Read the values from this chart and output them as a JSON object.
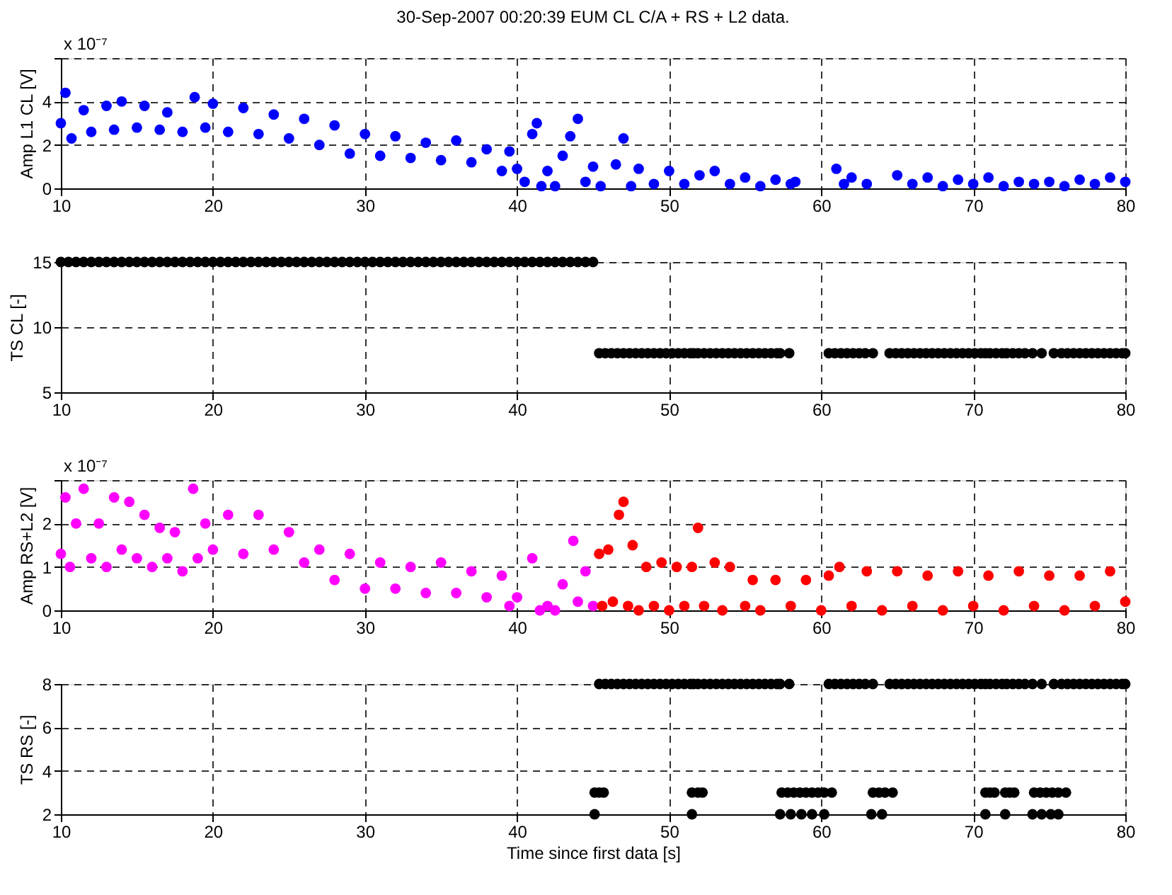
{
  "chart_data": [
    {
      "type": "scatter",
      "title": "30-Sep-2007 00:20:39 EUM CL C/A + RS + L2 data.",
      "ylabel": "Amp L1 CL [V]",
      "annotations": [
        "x 10⁻⁷"
      ],
      "xlim": [
        10,
        80
      ],
      "xticks": [
        10,
        20,
        30,
        40,
        50,
        60,
        70,
        80
      ],
      "ylim": [
        0,
        6
      ],
      "yticks": [
        0,
        2,
        4,
        {
          "value": 6,
          "label": null
        }
      ],
      "grid": true,
      "marker": "circle",
      "series": [
        {
          "color": "#0000ff",
          "x": [
            10,
            10.3,
            10.7,
            11.5,
            12,
            13,
            13.5,
            14,
            15,
            15.5,
            16.5,
            17,
            18,
            18.8,
            19.5,
            20,
            21,
            22,
            23,
            24,
            25,
            26,
            27,
            28,
            29,
            30,
            31,
            32,
            33,
            34,
            35,
            36,
            37,
            38,
            39,
            39.5,
            40,
            40.5,
            41,
            41.3,
            41.6,
            42,
            42.5,
            43,
            43.5,
            44,
            44.5,
            45,
            45.5,
            46.5,
            47,
            47.5,
            48,
            49,
            50,
            51,
            52,
            53,
            54,
            55,
            56,
            57,
            58,
            58.3,
            61,
            61.5,
            62,
            63,
            65,
            66,
            67,
            68,
            69,
            70,
            71,
            72,
            73,
            74,
            75,
            76,
            77,
            78,
            79,
            80
          ],
          "values": [
            3.0,
            4.4,
            2.3,
            3.6,
            2.6,
            3.8,
            2.7,
            4.0,
            2.8,
            3.8,
            2.7,
            3.5,
            2.6,
            4.2,
            2.8,
            3.9,
            2.6,
            3.7,
            2.5,
            3.4,
            2.3,
            3.2,
            2.0,
            2.9,
            1.6,
            2.5,
            1.5,
            2.4,
            1.4,
            2.1,
            1.3,
            2.2,
            1.2,
            1.8,
            0.8,
            1.7,
            0.9,
            0.3,
            2.5,
            3.0,
            0.1,
            0.8,
            0.1,
            1.5,
            2.4,
            3.2,
            0.3,
            1.0,
            0.1,
            1.1,
            2.3,
            0.1,
            0.9,
            0.2,
            0.8,
            0.2,
            0.6,
            0.8,
            0.2,
            0.5,
            0.1,
            0.4,
            0.2,
            0.3,
            0.9,
            0.2,
            0.5,
            0.2,
            0.6,
            0.2,
            0.5,
            0.1,
            0.4,
            0.2,
            0.5,
            0.1,
            0.3,
            0.2,
            0.3,
            0.1,
            0.4,
            0.2,
            0.5,
            0.3
          ]
        }
      ]
    },
    {
      "type": "scatter",
      "ylabel": "TS CL [-]",
      "xlim": [
        10,
        80
      ],
      "xticks": [
        10,
        20,
        30,
        40,
        50,
        60,
        70,
        80
      ],
      "ylim": [
        5,
        15
      ],
      "yticks": [
        5,
        10,
        15
      ],
      "grid": true,
      "marker": "circle",
      "series": [
        {
          "color": "#000000",
          "x": [
            10,
            10.5,
            11,
            11.5,
            12,
            12.5,
            13,
            13.5,
            14,
            14.5,
            15,
            15.5,
            16,
            16.5,
            17,
            17.5,
            18,
            18.5,
            19,
            19.5,
            20,
            20.5,
            21,
            21.5,
            22,
            22.5,
            23,
            23.5,
            24,
            24.5,
            25,
            25.5,
            26,
            26.5,
            27,
            27.5,
            28,
            28.5,
            29,
            29.5,
            30,
            30.5,
            31,
            31.5,
            32,
            32.5,
            33,
            33.5,
            34,
            34.5,
            35,
            35.5,
            36,
            36.5,
            37,
            37.5,
            38,
            38.5,
            39,
            39.5,
            40,
            40.5,
            41,
            41.5,
            42,
            42.5,
            43,
            43.5,
            44,
            44.5,
            45,
            45.4,
            45.8,
            46.2,
            46.6,
            47,
            47.4,
            47.8,
            48.2,
            48.6,
            49,
            49.4,
            49.8,
            50.2,
            50.6,
            51,
            51.4,
            51.6,
            51.9,
            52.3,
            52.7,
            53.1,
            53.5,
            53.9,
            54.3,
            54.7,
            55.1,
            55.5,
            55.9,
            56.3,
            56.7,
            57.1,
            57.3,
            57.9,
            60.5,
            60.9,
            61.3,
            61.7,
            62.1,
            62.5,
            62.9,
            63.4,
            64.5,
            64.9,
            65.3,
            65.7,
            66.1,
            66.5,
            66.9,
            67.3,
            67.7,
            68.1,
            68.5,
            68.9,
            69.3,
            69.7,
            70.1,
            70.5,
            70.8,
            71.1,
            71.5,
            71.9,
            72.2,
            72.6,
            73,
            73.4,
            73.9,
            74.5,
            75.3,
            75.8,
            76.2,
            76.6,
            77,
            77.4,
            77.8,
            78.2,
            78.6,
            79,
            79.4,
            79.8,
            80
          ],
          "values": [
            15,
            15,
            15,
            15,
            15,
            15,
            15,
            15,
            15,
            15,
            15,
            15,
            15,
            15,
            15,
            15,
            15,
            15,
            15,
            15,
            15,
            15,
            15,
            15,
            15,
            15,
            15,
            15,
            15,
            15,
            15,
            15,
            15,
            15,
            15,
            15,
            15,
            15,
            15,
            15,
            15,
            15,
            15,
            15,
            15,
            15,
            15,
            15,
            15,
            15,
            15,
            15,
            15,
            15,
            15,
            15,
            15,
            15,
            15,
            15,
            15,
            15,
            15,
            15,
            15,
            15,
            15,
            15,
            15,
            15,
            15,
            8,
            8,
            8,
            8,
            8,
            8,
            8,
            8,
            8,
            8,
            8,
            8,
            8,
            8,
            8,
            8,
            8,
            8,
            8,
            8,
            8,
            8,
            8,
            8,
            8,
            8,
            8,
            8,
            8,
            8,
            8,
            8,
            8,
            8,
            8,
            8,
            8,
            8,
            8,
            8,
            8,
            8,
            8,
            8,
            8,
            8,
            8,
            8,
            8,
            8,
            8,
            8,
            8,
            8,
            8,
            8,
            8,
            8,
            8,
            8,
            8,
            8,
            8,
            8,
            8,
            8,
            8,
            8,
            8,
            8,
            8,
            8,
            8,
            8,
            8,
            8,
            8,
            8,
            8,
            8
          ]
        }
      ]
    },
    {
      "type": "scatter",
      "ylabel": "Amp RS+L2 [V]",
      "annotations": [
        "x 10⁻⁷"
      ],
      "xlim": [
        10,
        80
      ],
      "xticks": [
        10,
        20,
        30,
        40,
        50,
        60,
        70,
        80
      ],
      "ylim": [
        0,
        3
      ],
      "yticks": [
        0,
        1,
        2,
        {
          "value": 3,
          "label": null
        }
      ],
      "grid": true,
      "marker": "circle",
      "series": [
        {
          "color": "#ff00ff",
          "x": [
            10,
            10.3,
            10.6,
            11,
            11.5,
            12,
            12.5,
            13,
            13.5,
            14,
            14.5,
            15,
            15.5,
            16,
            16.5,
            17,
            17.5,
            18,
            18.7,
            19,
            19.5,
            20,
            21,
            22,
            23,
            24,
            25,
            26,
            27,
            28,
            29,
            30,
            31,
            32,
            33,
            34,
            35,
            36,
            37,
            38,
            39,
            39.5,
            40,
            41,
            41.5,
            42,
            42.5,
            43,
            43.7,
            44,
            44.5,
            45
          ],
          "values": [
            1.3,
            2.6,
            1.0,
            2.0,
            2.8,
            1.2,
            2.0,
            1.0,
            2.6,
            1.4,
            2.5,
            1.2,
            2.2,
            1.0,
            1.9,
            1.2,
            1.8,
            0.9,
            2.8,
            1.2,
            2.0,
            1.4,
            2.2,
            1.3,
            2.2,
            1.4,
            1.8,
            1.1,
            1.4,
            0.7,
            1.3,
            0.5,
            1.1,
            0.5,
            1.0,
            0.4,
            1.1,
            0.4,
            0.9,
            0.3,
            0.8,
            0.1,
            0.3,
            1.2,
            0.0,
            0.1,
            0.0,
            0.6,
            1.6,
            0.2,
            0.9,
            0.1
          ]
        },
        {
          "color": "#ff0000",
          "x": [
            45.4,
            45.6,
            46,
            46.3,
            46.7,
            47,
            47.3,
            47.6,
            48,
            48.5,
            49,
            49.5,
            50,
            50.5,
            51,
            51.5,
            51.9,
            52.3,
            53,
            53.5,
            54,
            55,
            55.5,
            56,
            57,
            58,
            59,
            60,
            60.5,
            61.2,
            62,
            63,
            64,
            65,
            66,
            67,
            68,
            69,
            70,
            71,
            72,
            73,
            74,
            75,
            76,
            77,
            78,
            79,
            80
          ],
          "values": [
            1.3,
            0.1,
            1.4,
            0.2,
            2.2,
            2.5,
            0.1,
            1.5,
            0.0,
            1.0,
            0.1,
            1.1,
            0.0,
            1.0,
            0.1,
            1.0,
            1.9,
            0.1,
            1.1,
            0.0,
            1.0,
            0.1,
            0.7,
            0.0,
            0.7,
            0.1,
            0.7,
            0.0,
            0.8,
            1.0,
            0.1,
            0.9,
            0.0,
            0.9,
            0.1,
            0.8,
            0.0,
            0.9,
            0.1,
            0.8,
            0.0,
            0.9,
            0.1,
            0.8,
            0.0,
            0.8,
            0.1,
            0.9,
            0.2
          ]
        }
      ]
    },
    {
      "type": "scatter",
      "ylabel": "TS RS [-]",
      "xlabel": "Time since first data [s]",
      "xlim": [
        10,
        80
      ],
      "xticks": [
        10,
        20,
        30,
        40,
        50,
        60,
        70,
        80
      ],
      "ylim": [
        2,
        8
      ],
      "yticks": [
        2,
        4,
        6,
        8
      ],
      "grid": true,
      "marker": "circle",
      "series": [
        {
          "color": "#000000",
          "x": [
            45.4,
            45.8,
            46.2,
            46.6,
            47,
            47.4,
            47.8,
            48.2,
            48.6,
            49,
            49.4,
            49.8,
            50.2,
            50.6,
            51,
            51.4,
            51.6,
            51.9,
            52.3,
            52.7,
            53.1,
            53.5,
            53.9,
            54.3,
            54.7,
            55.1,
            55.5,
            55.9,
            56.3,
            56.7,
            57.1,
            57.3,
            57.9,
            60.5,
            60.9,
            61.3,
            61.7,
            62.1,
            62.5,
            62.9,
            63.4,
            64.5,
            64.9,
            65.3,
            65.7,
            66.1,
            66.5,
            66.9,
            67.3,
            67.7,
            68.1,
            68.5,
            68.9,
            69.3,
            69.7,
            70.1,
            70.5,
            70.8,
            71.1,
            71.5,
            71.9,
            72.2,
            72.6,
            73,
            73.4,
            73.9,
            74.5,
            75.3,
            75.8,
            76.2,
            76.6,
            77,
            77.4,
            77.8,
            78.2,
            78.6,
            79,
            79.4,
            79.8,
            80,
            45.1,
            45.4,
            45.7,
            51.5,
            51.9,
            52.2,
            57.4,
            57.8,
            58.2,
            58.6,
            59,
            59.4,
            59.8,
            60.2,
            60.7,
            63.4,
            63.8,
            64.2,
            64.7,
            70.8,
            71.1,
            71.4,
            72.1,
            72.4,
            72.7,
            74,
            74.4,
            74.8,
            75.2,
            75.6,
            76.1,
            45.1,
            51.5,
            57.3,
            58,
            58.7,
            59.4,
            60.2,
            63.3,
            64,
            70.8,
            72.1,
            73.9,
            74.5,
            75.1,
            75.6
          ],
          "values": [
            8,
            8,
            8,
            8,
            8,
            8,
            8,
            8,
            8,
            8,
            8,
            8,
            8,
            8,
            8,
            8,
            8,
            8,
            8,
            8,
            8,
            8,
            8,
            8,
            8,
            8,
            8,
            8,
            8,
            8,
            8,
            8,
            8,
            8,
            8,
            8,
            8,
            8,
            8,
            8,
            8,
            8,
            8,
            8,
            8,
            8,
            8,
            8,
            8,
            8,
            8,
            8,
            8,
            8,
            8,
            8,
            8,
            8,
            8,
            8,
            8,
            8,
            8,
            8,
            8,
            8,
            8,
            8,
            8,
            8,
            8,
            8,
            8,
            8,
            8,
            8,
            8,
            8,
            8,
            8,
            3,
            3,
            3,
            3,
            3,
            3,
            3,
            3,
            3,
            3,
            3,
            3,
            3,
            3,
            3,
            3,
            3,
            3,
            3,
            3,
            3,
            3,
            3,
            3,
            3,
            3,
            3,
            3,
            3,
            3,
            3,
            2,
            2,
            2,
            2,
            2,
            2,
            2,
            2,
            2,
            2,
            2,
            2,
            2,
            2,
            2
          ]
        }
      ]
    }
  ]
}
